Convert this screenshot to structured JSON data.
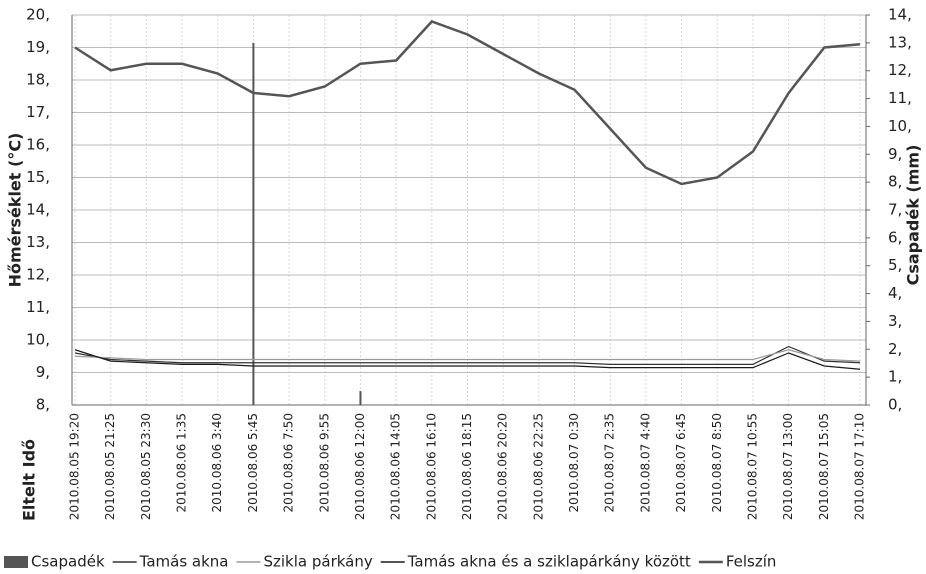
{
  "chart_data": {
    "type": "line",
    "y_label": "Hőmérséklet (°C)",
    "y2_label": "Csapadék (mm)",
    "x_label": "Eltelt Idő",
    "categories": [
      "2010.08.05 19:20",
      "2010.08.05 21:25",
      "2010.08.05 23:30",
      "2010.08.06 1:35",
      "2010.08.06 3:40",
      "2010.08.06 5:45",
      "2010.08.06 7:50",
      "2010.08.06 9:55",
      "2010.08.06 12:00",
      "2010.08.06 14:05",
      "2010.08.06 16:10",
      "2010.08.06 18:15",
      "2010.08.06 20:20",
      "2010.08.06 22:25",
      "2010.08.07 0:30",
      "2010.08.07 2:35",
      "2010.08.07 4:40",
      "2010.08.07 6:45",
      "2010.08.07 8:50",
      "2010.08.07 10:55",
      "2010.08.07 13:00",
      "2010.08.07 15:05",
      "2010.08.07 17:10"
    ],
    "series": [
      {
        "name": "Csapadék",
        "type": "bar",
        "axis": "y2",
        "color": "#555555",
        "values": [
          0,
          0,
          0,
          0,
          0,
          13,
          0,
          0,
          0.5,
          0,
          0,
          0,
          0,
          0,
          0,
          0,
          0,
          0,
          0,
          0,
          0,
          0,
          0
        ]
      },
      {
        "name": "Tamás akna",
        "color": "#333333",
        "values": [
          9.6,
          9.4,
          9.35,
          9.3,
          9.3,
          9.3,
          9.3,
          9.3,
          9.3,
          9.3,
          9.3,
          9.3,
          9.3,
          9.3,
          9.3,
          9.25,
          9.25,
          9.25,
          9.25,
          9.25,
          9.8,
          9.35,
          9.3
        ]
      },
      {
        "name": "Szikla párkány",
        "color": "#999999",
        "values": [
          9.5,
          9.45,
          9.4,
          9.4,
          9.4,
          9.4,
          9.4,
          9.4,
          9.4,
          9.4,
          9.4,
          9.4,
          9.4,
          9.4,
          9.4,
          9.4,
          9.4,
          9.4,
          9.4,
          9.4,
          9.7,
          9.4,
          9.35
        ]
      },
      {
        "name": "Tamás akna és a sziklapárkány között",
        "color": "#1a1a1a",
        "values": [
          9.7,
          9.35,
          9.3,
          9.25,
          9.25,
          9.2,
          9.2,
          9.2,
          9.2,
          9.2,
          9.2,
          9.2,
          9.2,
          9.2,
          9.2,
          9.15,
          9.15,
          9.15,
          9.15,
          9.15,
          9.6,
          9.2,
          9.1
        ]
      },
      {
        "name": "Felszín",
        "color": "#555555",
        "width": 2.5,
        "values": [
          19.0,
          18.3,
          18.5,
          18.5,
          18.2,
          17.6,
          17.5,
          17.8,
          18.5,
          18.6,
          19.8,
          19.4,
          18.8,
          18.2,
          17.7,
          16.5,
          15.3,
          14.8,
          15.0,
          15.8,
          17.6,
          19.0,
          19.1
        ]
      }
    ],
    "ylim": [
      8,
      20
    ],
    "yticks": [
      {
        "value": 8,
        "label": "8,"
      },
      {
        "value": 9,
        "label": "9,"
      },
      {
        "value": 10,
        "label": "10,"
      },
      {
        "value": 11,
        "label": "11,"
      },
      {
        "value": 12,
        "label": "12,"
      },
      {
        "value": 13,
        "label": "13,"
      },
      {
        "value": 14,
        "label": "14,"
      },
      {
        "value": 15,
        "label": "15,"
      },
      {
        "value": 16,
        "label": "16,"
      },
      {
        "value": 17,
        "label": "17,"
      },
      {
        "value": 18,
        "label": "18,"
      },
      {
        "value": 19,
        "label": "19,"
      },
      {
        "value": 20,
        "label": "20,"
      }
    ],
    "y2lim": [
      0,
      14
    ],
    "y2ticks": [
      {
        "value": 0,
        "label": "0,"
      },
      {
        "value": 1,
        "label": "1,"
      },
      {
        "value": 2,
        "label": "2,"
      },
      {
        "value": 3,
        "label": "3,"
      },
      {
        "value": 4,
        "label": "4,"
      },
      {
        "value": 5,
        "label": "5,"
      },
      {
        "value": 6,
        "label": "6,"
      },
      {
        "value": 7,
        "label": "7,"
      },
      {
        "value": 8,
        "label": "8,"
      },
      {
        "value": 9,
        "label": "9,"
      },
      {
        "value": 10,
        "label": "10,"
      },
      {
        "value": 11,
        "label": "11,"
      },
      {
        "value": 12,
        "label": "12,"
      },
      {
        "value": 13,
        "label": "13,"
      },
      {
        "value": 14,
        "label": "14,"
      }
    ],
    "grid": true,
    "legend": "bottom"
  }
}
